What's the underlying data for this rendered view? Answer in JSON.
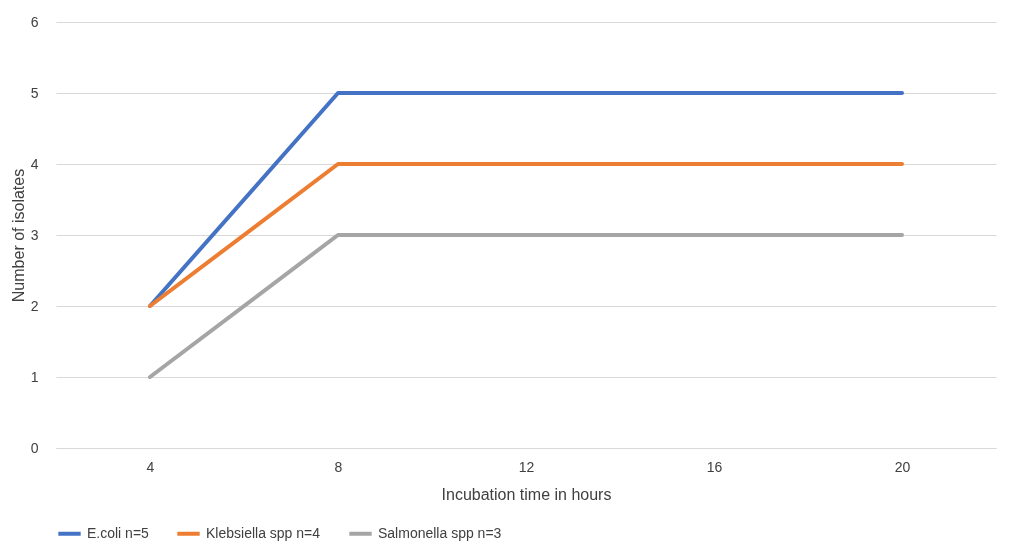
{
  "chart_data": {
    "type": "line",
    "xlabel": "Incubation time in hours",
    "ylabel": "Number of isolates",
    "categories": [
      "4",
      "8",
      "12",
      "16",
      "20"
    ],
    "series": [
      {
        "name": "E.coli n=5",
        "color": "#4472c4",
        "values": [
          2,
          5,
          5,
          5,
          5
        ]
      },
      {
        "name": "Klebsiella spp n=4",
        "color": "#ed7d31",
        "values": [
          2,
          4,
          4,
          4,
          4
        ]
      },
      {
        "name": "Salmonella spp n=3",
        "color": "#a5a5a5",
        "values": [
          1,
          3,
          3,
          3,
          3
        ]
      }
    ],
    "ylim": [
      0,
      6
    ],
    "yticks": [
      0,
      1,
      2,
      3,
      4,
      5,
      6
    ],
    "grid": "y",
    "legend": "bottom",
    "line_style": "solid"
  }
}
